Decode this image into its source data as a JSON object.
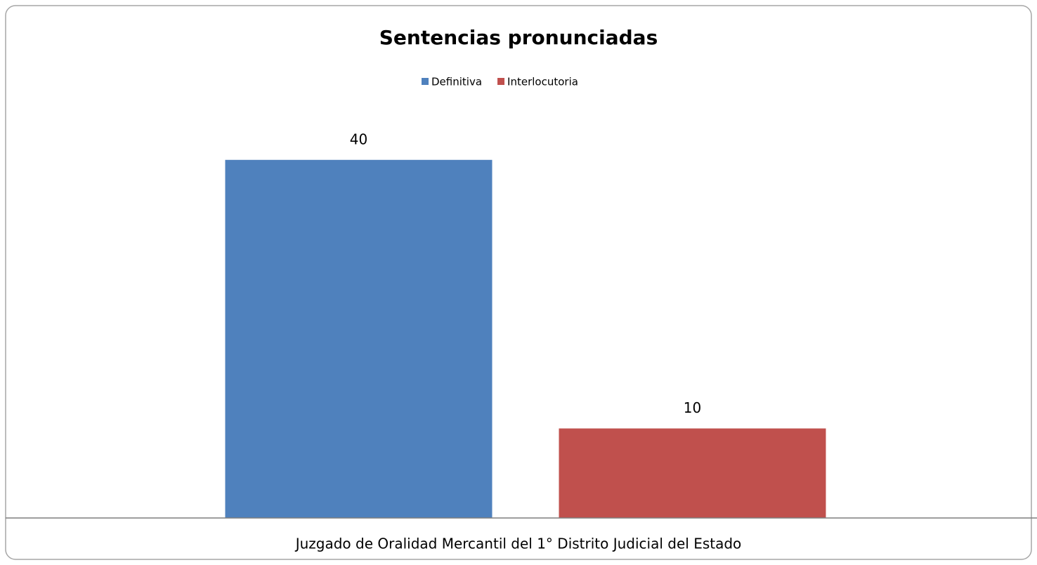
{
  "chart_data": {
    "type": "bar",
    "title": "Sentencias pronunciadas",
    "categories": [
      "Juzgado de Oralidad Mercantil del 1° Distrito Judicial del Estado"
    ],
    "series": [
      {
        "name": "Definitiva",
        "color": "#4f81bd",
        "values": [
          40
        ]
      },
      {
        "name": "Interlocutoria",
        "color": "#c0504d",
        "values": [
          10
        ]
      }
    ],
    "ylim": [
      0,
      45
    ],
    "legend": "top"
  }
}
